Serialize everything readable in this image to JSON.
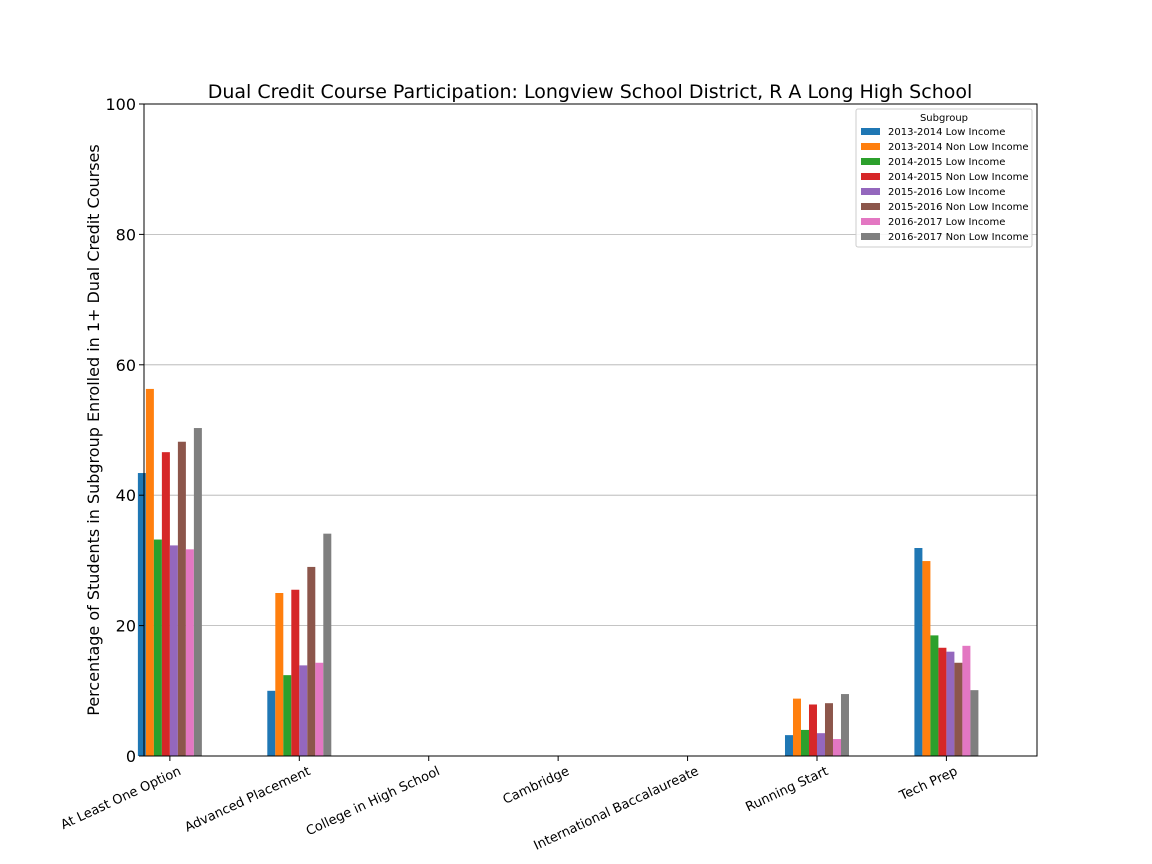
{
  "chart_data": {
    "type": "bar",
    "title": "Dual Credit Course Participation: Longview School District, R A Long High School",
    "ylabel": "Percentage of Students in Subgroup Enrolled in 1+ Dual Credit Courses",
    "xlabel": "",
    "ylim": [
      0,
      100
    ],
    "yticks": [
      0,
      20,
      40,
      60,
      80,
      100
    ],
    "grid": "y",
    "legend_title": "Subgroup",
    "legend_position": "top-right",
    "categories": [
      "At Least One Option",
      "Advanced Placement",
      "College in High School",
      "Cambridge",
      "International Baccalaureate",
      "Running Start",
      "Tech Prep"
    ],
    "series": [
      {
        "name": "2013-2014 Low Income",
        "color": "#1f77b4",
        "values": [
          43.4,
          10.0,
          0,
          0,
          0,
          3.2,
          31.9
        ]
      },
      {
        "name": "2013-2014 Non Low Income",
        "color": "#ff7f0e",
        "values": [
          56.3,
          25.0,
          0,
          0,
          0,
          8.8,
          29.9
        ]
      },
      {
        "name": "2014-2015 Low Income",
        "color": "#2ca02c",
        "values": [
          33.2,
          12.4,
          0,
          0,
          0,
          4.0,
          18.5
        ]
      },
      {
        "name": "2014-2015 Non Low Income",
        "color": "#d62728",
        "values": [
          46.6,
          25.5,
          0,
          0,
          0,
          7.9,
          16.6
        ]
      },
      {
        "name": "2015-2016 Low Income",
        "color": "#9467bd",
        "values": [
          32.3,
          13.9,
          0,
          0,
          0,
          3.5,
          16.0
        ]
      },
      {
        "name": "2015-2016 Non Low Income",
        "color": "#8c564b",
        "values": [
          48.2,
          29.0,
          0,
          0,
          0,
          8.1,
          14.3
        ]
      },
      {
        "name": "2016-2017 Low Income",
        "color": "#e377c2",
        "values": [
          31.7,
          14.3,
          0,
          0,
          0,
          2.6,
          16.9
        ]
      },
      {
        "name": "2016-2017 Non Low Income",
        "color": "#7f7f7f",
        "values": [
          50.3,
          34.1,
          0,
          0,
          0,
          9.5,
          10.1
        ]
      }
    ]
  }
}
